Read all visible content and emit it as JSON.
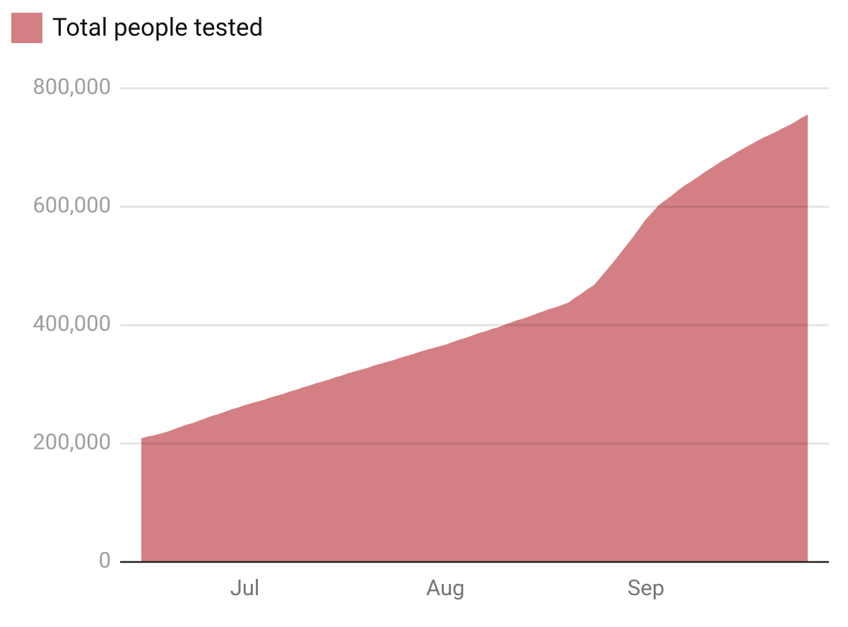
{
  "chart_data": {
    "type": "area",
    "categories": [
      null,
      null,
      null,
      null,
      null,
      null,
      null,
      null,
      null,
      null,
      null,
      null,
      null,
      null,
      null,
      null,
      "Jul",
      null,
      null,
      null,
      null,
      null,
      null,
      null,
      null,
      null,
      null,
      null,
      null,
      null,
      null,
      null,
      null,
      null,
      null,
      null,
      null,
      null,
      null,
      null,
      null,
      null,
      null,
      null,
      null,
      null,
      null,
      "Aug",
      null,
      null,
      null,
      null,
      null,
      null,
      null,
      null,
      null,
      null,
      null,
      null,
      null,
      null,
      null,
      null,
      null,
      null,
      null,
      null,
      null,
      null,
      null,
      null,
      null,
      null,
      null,
      null,
      null,
      null,
      "Sep",
      null,
      null,
      null,
      null,
      null,
      null,
      null,
      null,
      null,
      null,
      null,
      null,
      null,
      null,
      null,
      null,
      null,
      null,
      null,
      null,
      null,
      null,
      null,
      null,
      null
    ],
    "series": [
      {
        "name": "Total people tested",
        "color": "#d47f83",
        "values": [
          209000,
          212000,
          214000,
          217000,
          220000,
          224000,
          228000,
          232000,
          235000,
          239000,
          243000,
          247000,
          250000,
          254000,
          258000,
          261000,
          265000,
          268000,
          271000,
          274000,
          278000,
          281000,
          284000,
          288000,
          291000,
          295000,
          298000,
          302000,
          305000,
          308000,
          312000,
          315000,
          319000,
          322000,
          325000,
          328000,
          332000,
          335000,
          338000,
          341000,
          345000,
          348000,
          351000,
          355000,
          358000,
          361000,
          364000,
          367000,
          371000,
          375000,
          378000,
          382000,
          386000,
          389000,
          393000,
          396000,
          400000,
          404000,
          408000,
          411000,
          415000,
          419000,
          423000,
          427000,
          430000,
          434000,
          438000,
          446000,
          453000,
          461000,
          468000,
          481000,
          494000,
          507000,
          521000,
          535000,
          549000,
          564000,
          579000,
          591000,
          603000,
          611000,
          619000,
          628000,
          636000,
          643000,
          650000,
          658000,
          665000,
          672000,
          679000,
          685000,
          692000,
          698000,
          704000,
          710000,
          716000,
          721000,
          726000,
          732000,
          737000,
          743000,
          750000,
          756000
        ]
      }
    ],
    "ylim": [
      0,
      800000
    ],
    "yticks": [
      0,
      {
        "value": 200000,
        "label": "200,000"
      },
      {
        "value": 400000,
        "label": "400,000"
      },
      {
        "value": 600000,
        "label": "600,000"
      },
      {
        "value": 800000,
        "label": "800,000"
      }
    ],
    "grid": true
  }
}
